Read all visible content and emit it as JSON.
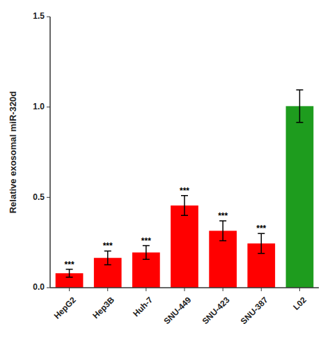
{
  "chart_data": {
    "type": "bar",
    "categories": [
      "HepG2",
      "Hep3B",
      "Huh-7",
      "SNU-449",
      "SNU-423",
      "SNU-387",
      "L02"
    ],
    "values": [
      0.08,
      0.165,
      0.195,
      0.455,
      0.315,
      0.245,
      1.005
    ],
    "errors": [
      0.022,
      0.038,
      0.038,
      0.055,
      0.055,
      0.055,
      0.09
    ],
    "colors": [
      "#FF0000",
      "#FF0000",
      "#FF0000",
      "#FF0000",
      "#FF0000",
      "#FF0000",
      "#1E9C1E"
    ],
    "significance": [
      "***",
      "***",
      "***",
      "***",
      "***",
      "***",
      null
    ],
    "ylabel": "Relative exosomal miR-320d",
    "ylim": [
      0,
      1.5
    ],
    "yticks": [
      {
        "value": 0.0,
        "label": "0.0"
      },
      {
        "value": 0.5,
        "label": "0.5"
      },
      {
        "value": 1.0,
        "label": "1.0"
      },
      {
        "value": 1.5,
        "label": "1.5"
      }
    ],
    "grid": false
  }
}
